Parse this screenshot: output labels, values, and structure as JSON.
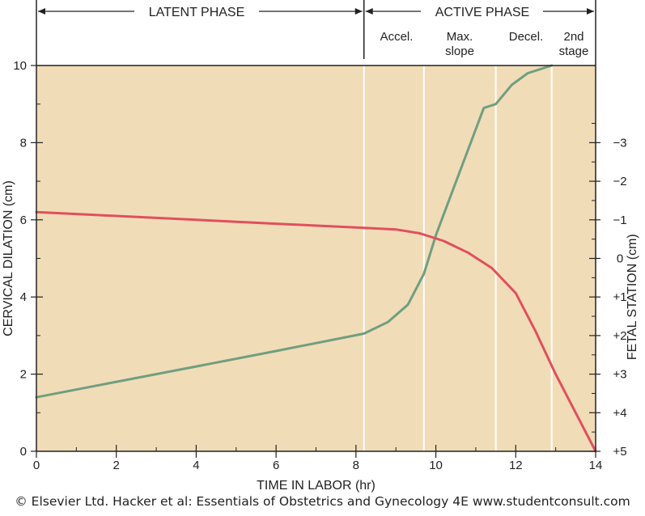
{
  "chart_data": {
    "type": "line",
    "xlabel": "TIME IN LABOR (hr)",
    "ylabel": "CERVICAL DILATION (cm)",
    "y2label": "FETAL  STATION (cm)",
    "xlim": [
      0,
      14
    ],
    "ylim": [
      0,
      10
    ],
    "x_ticks": [
      "0",
      "2",
      "4",
      "6",
      "8",
      "10",
      "12",
      "14"
    ],
    "y_ticks": [
      "0",
      "2",
      "4",
      "6",
      "8",
      "10"
    ],
    "y2_ticks": [
      "+5",
      "+4",
      "+3",
      "+2",
      "+1",
      "0",
      "−1",
      "−2",
      "−3"
    ],
    "y2_tick_values": [
      0,
      1,
      2,
      3,
      4,
      5,
      6,
      7,
      8
    ],
    "phase_dividers_x": [
      8.2,
      9.7,
      11.5,
      12.9
    ],
    "phases": {
      "latent": "LATENT PHASE",
      "active": "ACTIVE PHASE",
      "accel": "Accel.",
      "max_line1": "Max.",
      "max_line2": "slope",
      "decel": "Decel.",
      "second_line1": "2nd",
      "second_line2": "stage"
    },
    "series": [
      {
        "color": "#6f9f80",
        "x": [
          0,
          2,
          4,
          6,
          8.2,
          8.8,
          9.3,
          9.7,
          10.0,
          10.4,
          10.8,
          11.2,
          11.5,
          11.9,
          12.3,
          12.9
        ],
        "y": [
          1.4,
          1.8,
          2.2,
          2.6,
          3.05,
          3.35,
          3.8,
          4.6,
          5.6,
          6.7,
          7.8,
          8.9,
          9.0,
          9.5,
          9.8,
          10.0
        ]
      },
      {
        "color": "#e0505c",
        "x": [
          0,
          2,
          4,
          6,
          8,
          9,
          9.6,
          10.2,
          10.8,
          11.4,
          12.0,
          12.5,
          13.0,
          13.5,
          14.0
        ],
        "y": [
          6.2,
          6.1,
          6.0,
          5.9,
          5.8,
          5.75,
          5.65,
          5.45,
          5.15,
          4.75,
          4.1,
          3.1,
          2.0,
          1.0,
          0.0
        ]
      }
    ],
    "plot_bg": "#f1dcb8",
    "frame_color": "#222222",
    "grid_color": "#ffffff"
  },
  "credit": "© Elsevier Ltd. Hacker et al: Essentials of Obstetrics and Gynecology 4E www.studentconsult.com"
}
